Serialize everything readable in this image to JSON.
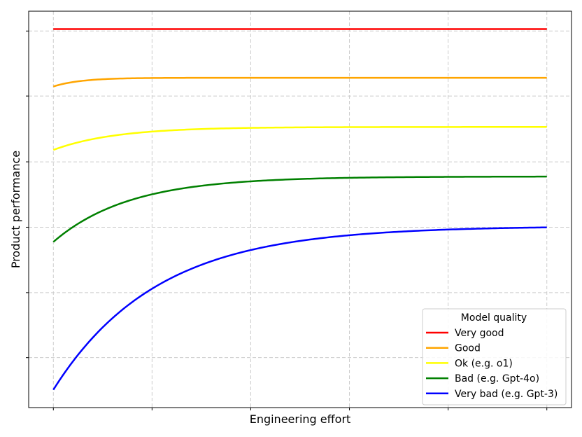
{
  "chart_data": {
    "type": "line",
    "title": "",
    "xlabel": "Engineering effort",
    "ylabel": "Product performance",
    "xlim": [
      -0.05,
      1.05
    ],
    "ylim": [
      0.0,
      1.0
    ],
    "x_range": [
      0,
      1
    ],
    "grid": true,
    "tick_labels_visible": false,
    "legend": {
      "title": "Model quality",
      "placement": "bottom-right"
    },
    "series": [
      {
        "name": "Very good",
        "color": "#ff0000",
        "start": 0.955,
        "end": 0.955,
        "rate": 1
      },
      {
        "name": "Good",
        "color": "#ffa500",
        "start": 0.81,
        "end": 0.832,
        "rate": 18
      },
      {
        "name": "Ok (e.g. o1)",
        "color": "#ffff00",
        "start": 0.65,
        "end": 0.708,
        "rate": 8
      },
      {
        "name": "Bad (e.g. Gpt-4o)",
        "color": "#008000",
        "start": 0.418,
        "end": 0.583,
        "rate": 6.5
      },
      {
        "name": "Very bad (e.g. Gpt-3)",
        "color": "#0000ff",
        "start": 0.045,
        "end": 0.458,
        "rate": 4.8
      }
    ]
  }
}
